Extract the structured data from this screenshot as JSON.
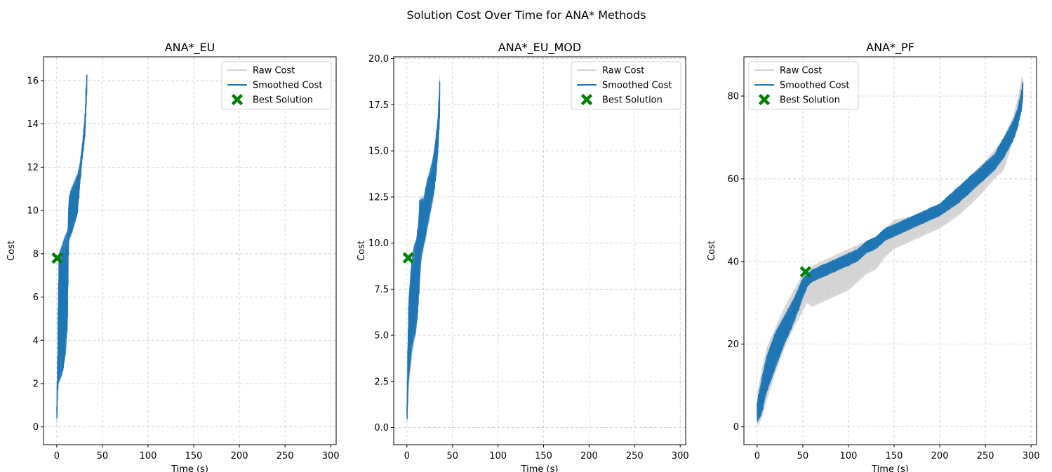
{
  "figure": {
    "suptitle": "Solution Cost Over Time for ANA* Methods",
    "legend_position": "upper-right"
  },
  "colors": {
    "raw": "#d3d3d3",
    "smoothed": "#1f77b4",
    "best": "#008000",
    "grid": "#cccccc"
  },
  "legend": {
    "raw": "Raw Cost",
    "smoothed": "Smoothed Cost",
    "best": "Best Solution"
  },
  "chart_data": [
    {
      "type": "line",
      "title": "ANA*_EU",
      "xlabel": "Time (s)",
      "ylabel": "Cost",
      "xlim": [
        -14.5,
        306
      ],
      "ylim": [
        -0.82,
        17.1
      ],
      "xticks": [
        0,
        50,
        100,
        150,
        200,
        250,
        300
      ],
      "yticks": [
        0,
        2,
        4,
        6,
        8,
        10,
        12,
        14,
        16
      ],
      "ytick_labels": [
        "0",
        "2",
        "4",
        "6",
        "8",
        "10",
        "12",
        "14",
        "16"
      ],
      "legend_loc": "upper-right",
      "grid": true,
      "best": {
        "x": 0.5,
        "y": 7.8
      },
      "raw_band": [
        [
          0,
          0,
          1.2
        ],
        [
          1,
          1.5,
          3.5
        ],
        [
          2,
          2.0,
          8.0
        ],
        [
          4,
          2.2,
          8.3
        ],
        [
          6,
          2.5,
          8.5
        ],
        [
          8,
          3.0,
          8.8
        ],
        [
          10,
          3.5,
          9.0
        ],
        [
          12,
          5.0,
          9.2
        ],
        [
          13,
          8.5,
          10.5
        ],
        [
          15,
          8.8,
          11.0
        ],
        [
          17,
          9.0,
          11.2
        ],
        [
          20,
          9.5,
          11.5
        ],
        [
          23,
          10.0,
          11.8
        ],
        [
          25,
          11.0,
          12.2
        ],
        [
          27,
          12.0,
          12.8
        ],
        [
          29,
          12.8,
          13.6
        ],
        [
          31,
          13.5,
          14.6
        ],
        [
          32,
          14.5,
          15.8
        ],
        [
          33,
          15.5,
          16.3
        ]
      ],
      "smooth_band": [
        [
          0,
          0,
          1.0
        ],
        [
          1,
          1.5,
          3.3
        ],
        [
          2,
          2.0,
          7.9
        ],
        [
          4,
          2.2,
          8.2
        ],
        [
          6,
          2.4,
          8.4
        ],
        [
          8,
          2.9,
          8.7
        ],
        [
          10,
          3.4,
          8.9
        ],
        [
          12,
          4.8,
          9.1
        ],
        [
          13,
          8.5,
          10.5
        ],
        [
          15,
          8.8,
          10.9
        ],
        [
          17,
          9.0,
          11.1
        ],
        [
          20,
          9.4,
          11.4
        ],
        [
          23,
          9.9,
          11.7
        ],
        [
          25,
          10.9,
          12.1
        ],
        [
          27,
          11.9,
          12.7
        ],
        [
          29,
          12.7,
          13.5
        ],
        [
          31,
          13.4,
          14.5
        ],
        [
          32,
          14.4,
          15.7
        ],
        [
          33,
          15.4,
          16.3
        ]
      ]
    },
    {
      "type": "line",
      "title": "ANA*_EU_MOD",
      "xlabel": "Time (s)",
      "ylabel": "Cost",
      "xlim": [
        -14.5,
        306
      ],
      "ylim": [
        -0.93,
        20.1
      ],
      "xticks": [
        0,
        50,
        100,
        150,
        200,
        250,
        300
      ],
      "yticks": [
        0.0,
        2.5,
        5.0,
        7.5,
        10.0,
        12.5,
        15.0,
        17.5,
        20.0
      ],
      "ytick_labels": [
        "0.0",
        "2.5",
        "5.0",
        "7.5",
        "10.0",
        "12.5",
        "15.0",
        "17.5",
        "20.0"
      ],
      "legend_loc": "upper-right",
      "grid": true,
      "best": {
        "x": 1.5,
        "y": 9.2
      },
      "raw_band": [
        [
          0,
          0.1,
          1.5
        ],
        [
          1,
          1.0,
          5.0
        ],
        [
          2,
          2.0,
          7.0
        ],
        [
          4,
          3.0,
          8.5
        ],
        [
          6,
          4.0,
          9.5
        ],
        [
          8,
          4.5,
          10.0
        ],
        [
          10,
          5.0,
          10.2
        ],
        [
          12,
          6.0,
          11.0
        ],
        [
          14,
          7.5,
          12.5
        ],
        [
          16,
          9.0,
          12.6
        ],
        [
          18,
          9.5,
          12.5
        ],
        [
          20,
          10.0,
          13.0
        ],
        [
          22,
          10.5,
          13.5
        ],
        [
          24,
          11.0,
          13.8
        ],
        [
          26,
          11.5,
          14.2
        ],
        [
          28,
          12.0,
          14.6
        ],
        [
          30,
          12.6,
          15.2
        ],
        [
          32,
          13.5,
          16.0
        ],
        [
          34,
          14.5,
          17.0
        ],
        [
          35,
          15.5,
          18.0
        ],
        [
          36,
          16.5,
          19.2
        ]
      ],
      "smooth_band": [
        [
          0,
          0.1,
          1.3
        ],
        [
          1,
          1.3,
          4.8
        ],
        [
          2,
          2.5,
          7.0
        ],
        [
          4,
          3.5,
          8.5
        ],
        [
          6,
          4.3,
          9.4
        ],
        [
          8,
          4.8,
          9.9
        ],
        [
          10,
          5.2,
          10.1
        ],
        [
          12,
          6.2,
          10.9
        ],
        [
          14,
          7.8,
          12.3
        ],
        [
          16,
          9.2,
          12.4
        ],
        [
          18,
          9.7,
          12.4
        ],
        [
          20,
          10.2,
          12.9
        ],
        [
          22,
          10.7,
          13.4
        ],
        [
          24,
          11.2,
          13.7
        ],
        [
          26,
          11.7,
          14.1
        ],
        [
          28,
          12.2,
          14.5
        ],
        [
          30,
          12.8,
          15.1
        ],
        [
          32,
          13.7,
          15.9
        ],
        [
          34,
          14.7,
          16.9
        ],
        [
          35,
          15.7,
          17.9
        ],
        [
          36,
          16.7,
          19.1
        ]
      ]
    },
    {
      "type": "line",
      "title": "ANA*_PF",
      "xlabel": "Time (s)",
      "ylabel": "Cost",
      "xlim": [
        -14.5,
        306
      ],
      "ylim": [
        -4.3,
        89.5
      ],
      "xticks": [
        0,
        50,
        100,
        150,
        200,
        250,
        300
      ],
      "yticks": [
        0,
        20,
        40,
        60,
        80
      ],
      "ytick_labels": [
        "0",
        "20",
        "40",
        "60",
        "80"
      ],
      "legend_loc": "upper-left",
      "grid": true,
      "best": {
        "x": 53,
        "y": 37.5
      },
      "raw_band": [
        [
          0,
          0,
          8
        ],
        [
          5,
          2,
          14
        ],
        [
          10,
          6,
          19
        ],
        [
          20,
          13,
          24
        ],
        [
          30,
          19,
          29
        ],
        [
          40,
          24,
          33
        ],
        [
          50,
          28,
          37
        ],
        [
          55,
          30,
          38
        ],
        [
          60,
          29,
          39
        ],
        [
          70,
          30,
          40
        ],
        [
          80,
          31,
          41
        ],
        [
          90,
          32,
          42
        ],
        [
          100,
          33,
          43
        ],
        [
          110,
          35,
          44
        ],
        [
          120,
          37,
          45
        ],
        [
          130,
          38,
          46
        ],
        [
          140,
          41,
          48
        ],
        [
          150,
          43,
          50
        ],
        [
          170,
          45,
          51
        ],
        [
          190,
          47,
          53
        ],
        [
          200,
          48,
          54
        ],
        [
          220,
          51,
          58
        ],
        [
          240,
          55,
          62
        ],
        [
          260,
          60,
          67
        ],
        [
          270,
          62,
          70
        ],
        [
          280,
          69,
          75
        ],
        [
          285,
          72,
          79
        ],
        [
          290,
          77,
          85
        ],
        [
          291,
          80,
          84
        ]
      ],
      "smooth_band": [
        [
          0,
          1,
          6
        ],
        [
          5,
          3,
          12
        ],
        [
          10,
          8,
          17
        ],
        [
          20,
          14,
          23
        ],
        [
          30,
          20,
          27
        ],
        [
          40,
          25,
          31
        ],
        [
          50,
          31,
          36
        ],
        [
          55,
          34,
          37
        ],
        [
          60,
          35,
          38
        ],
        [
          70,
          36,
          39
        ],
        [
          80,
          37,
          40
        ],
        [
          90,
          38,
          41
        ],
        [
          100,
          39,
          42
        ],
        [
          110,
          40,
          43
        ],
        [
          120,
          42,
          45
        ],
        [
          130,
          43,
          46
        ],
        [
          140,
          45,
          48
        ],
        [
          150,
          46,
          49
        ],
        [
          170,
          48,
          51
        ],
        [
          190,
          50,
          53
        ],
        [
          200,
          51,
          54
        ],
        [
          220,
          54,
          58
        ],
        [
          240,
          58,
          62
        ],
        [
          260,
          62,
          66
        ],
        [
          270,
          65,
          70
        ],
        [
          280,
          69,
          74
        ],
        [
          285,
          72,
          77
        ],
        [
          290,
          77,
          82
        ],
        [
          291,
          79,
          84
        ]
      ]
    }
  ]
}
